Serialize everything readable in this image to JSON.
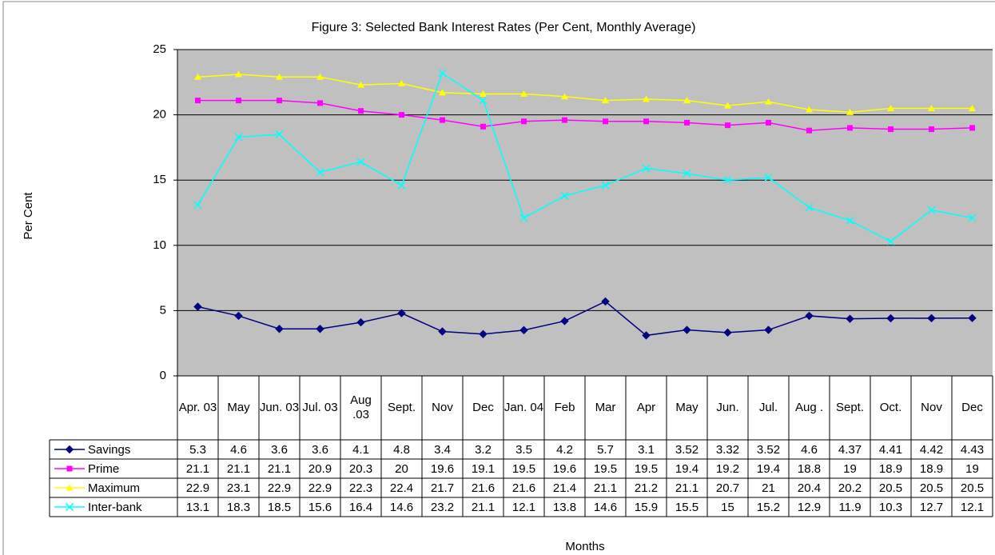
{
  "chart_data": {
    "type": "line",
    "title": "Figure 3: Selected Bank Interest Rates (Per Cent, Monthly Average)",
    "ylabel": "Per Cent",
    "xlabel": "Months",
    "categories": [
      "Apr. 03",
      "May",
      "Jun. 03",
      "Jul. 03",
      "Aug .03",
      "Sept.",
      "Nov",
      "Dec",
      "Jan. 04",
      "Feb",
      "Mar",
      "Apr",
      "May",
      "Jun.",
      "Jul.",
      "Aug .",
      "Sept.",
      "Oct.",
      "Nov",
      "Dec"
    ],
    "series": [
      {
        "name": "Savings",
        "color": "#000080",
        "marker": "diamond",
        "values": [
          5.3,
          4.6,
          3.6,
          3.6,
          4.1,
          4.8,
          3.4,
          3.2,
          3.5,
          4.2,
          5.7,
          3.1,
          3.52,
          3.32,
          3.52,
          4.6,
          4.37,
          4.41,
          4.42,
          4.43
        ]
      },
      {
        "name": "Prime",
        "color": "#ff00ff",
        "marker": "square",
        "values": [
          21.1,
          21.1,
          21.1,
          20.9,
          20.3,
          20,
          19.6,
          19.1,
          19.5,
          19.6,
          19.5,
          19.5,
          19.4,
          19.2,
          19.4,
          18.8,
          19,
          18.9,
          18.9,
          19
        ]
      },
      {
        "name": "Maximum",
        "color": "#ffff00",
        "marker": "triangle",
        "values": [
          22.9,
          23.1,
          22.9,
          22.9,
          22.3,
          22.4,
          21.7,
          21.6,
          21.6,
          21.4,
          21.1,
          21.2,
          21.1,
          20.7,
          21,
          20.4,
          20.2,
          20.5,
          20.5,
          20.5
        ]
      },
      {
        "name": "Inter-bank",
        "color": "#00ffff",
        "marker": "x",
        "values": [
          13.1,
          18.3,
          18.5,
          15.6,
          16.4,
          14.6,
          23.2,
          21.1,
          12.1,
          13.8,
          14.6,
          15.9,
          15.5,
          15,
          15.2,
          12.9,
          11.9,
          10.3,
          12.7,
          12.1
        ]
      }
    ],
    "ylim": [
      0,
      25
    ],
    "yticks": [
      0,
      5,
      10,
      15,
      20,
      25
    ],
    "grid": true,
    "plot_background": "#c0c0c0"
  }
}
